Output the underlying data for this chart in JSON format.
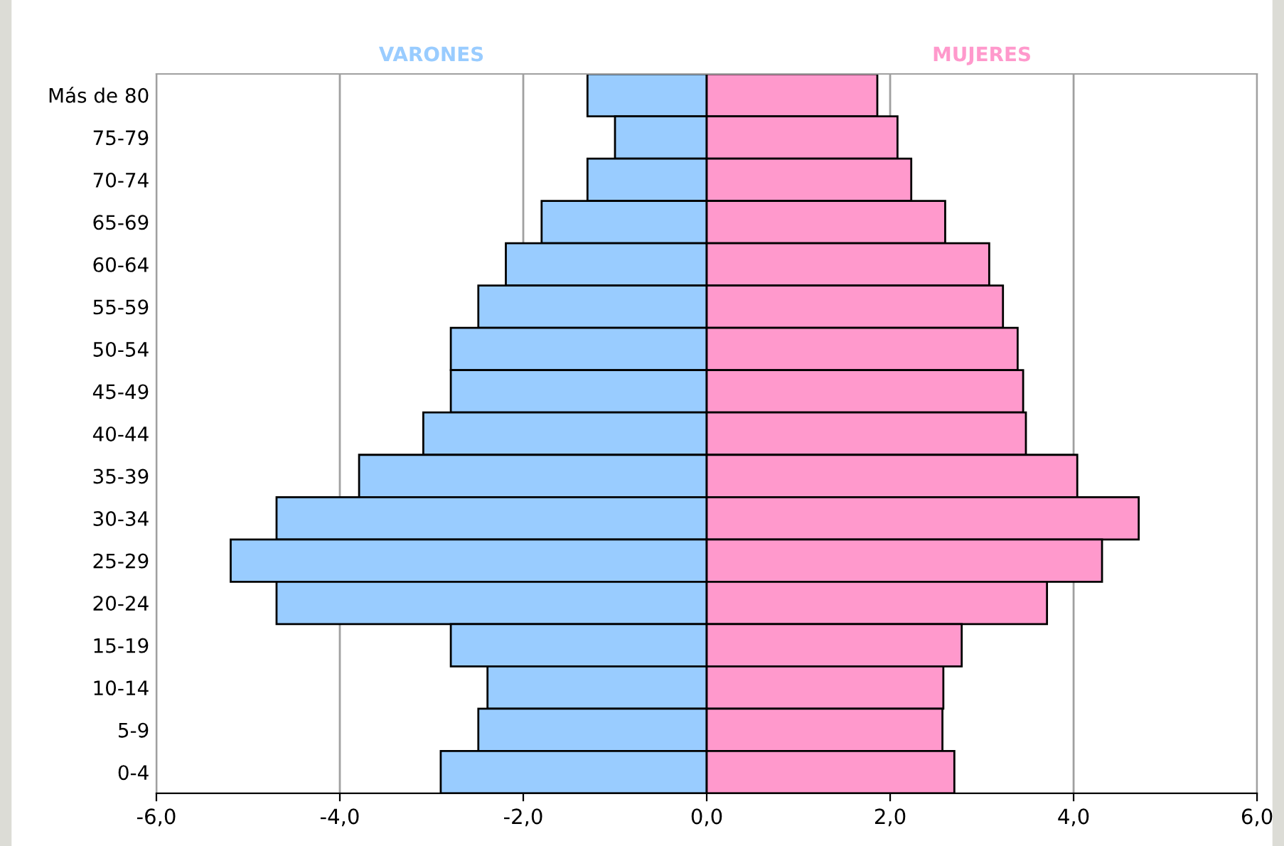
{
  "chart_data": {
    "type": "bar",
    "orientation": "horizontal",
    "stacked": true,
    "categories": [
      "Más de 80",
      "75-79",
      "70-74",
      "65-69",
      "60-64",
      "55-59",
      "50-54",
      "45-49",
      "40-44",
      "35-39",
      "30-34",
      "25-29",
      "20-24",
      "15-19",
      "10-14",
      "5-9",
      "0-4"
    ],
    "series": [
      {
        "name": "VARONES",
        "color": "#99ccff",
        "values": [
          -1.3,
          -1.0,
          -1.3,
          -1.8,
          -2.19,
          -2.49,
          -2.79,
          -2.79,
          -3.09,
          -3.79,
          -4.69,
          -5.19,
          -4.69,
          -2.79,
          -2.39,
          -2.49,
          -2.9
        ]
      },
      {
        "name": "MUJERES",
        "color": "#ff99cc",
        "values": [
          1.86,
          2.08,
          2.23,
          2.6,
          3.08,
          3.23,
          3.39,
          3.45,
          3.48,
          4.04,
          4.71,
          4.31,
          3.71,
          2.78,
          2.58,
          2.57,
          2.7
        ]
      }
    ],
    "xlim": [
      -6,
      6
    ],
    "xticks": [
      {
        "value": -6,
        "label": "-6,0"
      },
      {
        "value": -4,
        "label": "-4,0"
      },
      {
        "value": -2,
        "label": "-2,0"
      },
      {
        "value": 0,
        "label": "0,0"
      },
      {
        "value": 2,
        "label": "2,0"
      },
      {
        "value": 4,
        "label": "4,0"
      },
      {
        "value": 6,
        "label": "6,0"
      }
    ],
    "grid": "x",
    "legend": "top"
  }
}
